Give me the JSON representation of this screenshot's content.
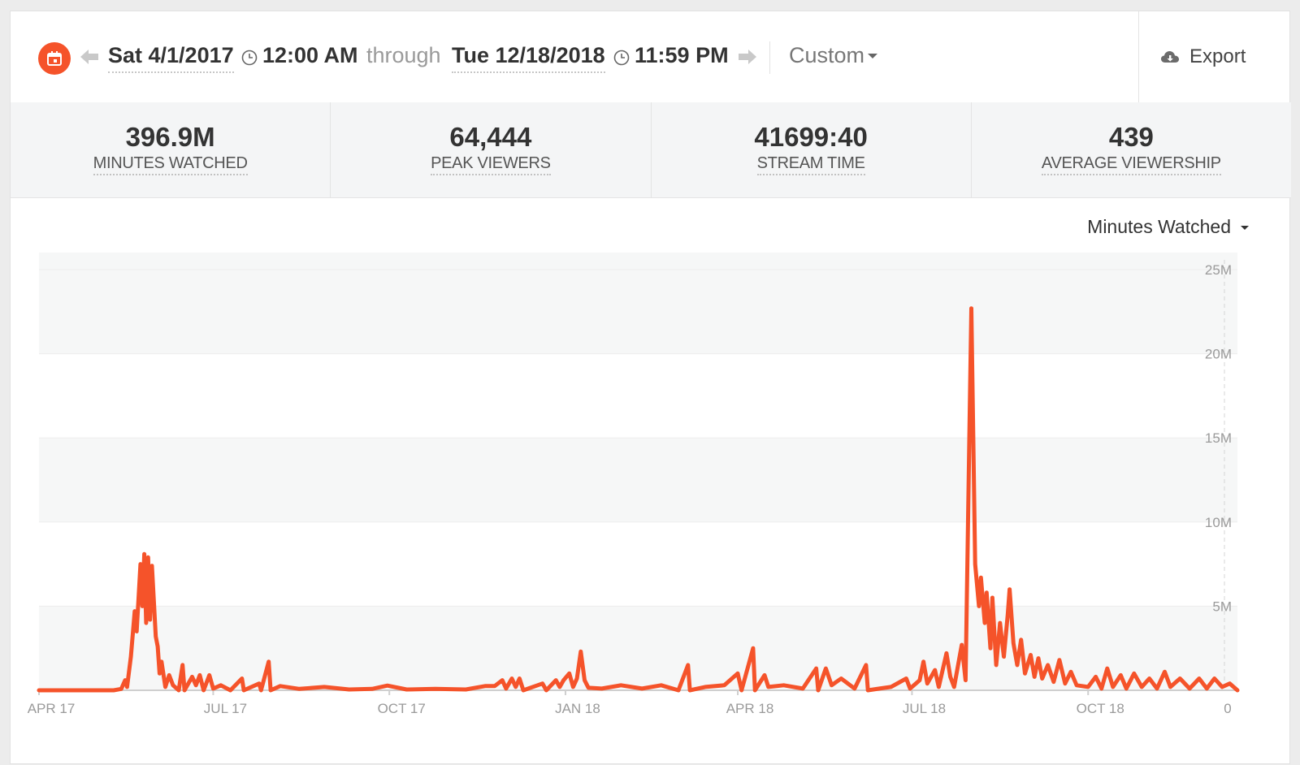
{
  "header": {
    "start_date": "Sat 4/1/2017",
    "start_time": "12:00 AM",
    "through": "through",
    "end_date": "Tue 12/18/2018",
    "end_time": "11:59 PM",
    "range_preset": "Custom",
    "export_label": "Export"
  },
  "stats": [
    {
      "value": "396.9M",
      "label": "MINUTES WATCHED"
    },
    {
      "value": "64,444",
      "label": "PEAK VIEWERS"
    },
    {
      "value": "41699:40",
      "label": "STREAM TIME"
    },
    {
      "value": "439",
      "label": "AVERAGE VIEWERSHIP"
    }
  ],
  "metric_selector": "Minutes Watched",
  "colors": {
    "accent": "#f5532a",
    "band": "#f6f7f7",
    "axis_text": "#9a9a9a"
  },
  "chart_data": {
    "type": "line",
    "title": "",
    "xlabel": "",
    "ylabel": "",
    "x_start": "2017-04-01",
    "x_end": "2018-12-18",
    "x_ticks": [
      {
        "date": "2017-04-01",
        "label": "APR 17"
      },
      {
        "date": "2017-07-01",
        "label": "JUL 17"
      },
      {
        "date": "2017-10-01",
        "label": "OCT 17"
      },
      {
        "date": "2018-01-01",
        "label": "JAN 18"
      },
      {
        "date": "2018-04-01",
        "label": "APR 18"
      },
      {
        "date": "2018-07-01",
        "label": "JUL 18"
      },
      {
        "date": "2018-10-01",
        "label": "OCT 18"
      }
    ],
    "x_end_label": "0",
    "ylim": [
      0,
      25000000
    ],
    "y_ticks": [
      {
        "value": 5000000,
        "label": "5M"
      },
      {
        "value": 10000000,
        "label": "10M"
      },
      {
        "value": 15000000,
        "label": "15M"
      },
      {
        "value": 20000000,
        "label": "20M"
      },
      {
        "value": 25000000,
        "label": "25M"
      }
    ],
    "grid": "alternating horizontal bands",
    "series": [
      {
        "color": "#f5532a",
        "points": [
          [
            "2017-04-01",
            0
          ],
          [
            "2017-04-20",
            0
          ],
          [
            "2017-05-10",
            0
          ],
          [
            "2017-05-14",
            80000
          ],
          [
            "2017-05-16",
            600000
          ],
          [
            "2017-05-17",
            200000
          ],
          [
            "2017-05-19",
            2000000
          ],
          [
            "2017-05-21",
            4700000
          ],
          [
            "2017-05-22",
            3500000
          ],
          [
            "2017-05-24",
            7500000
          ],
          [
            "2017-05-25",
            5000000
          ],
          [
            "2017-05-26",
            8100000
          ],
          [
            "2017-05-27",
            4000000
          ],
          [
            "2017-05-28",
            7900000
          ],
          [
            "2017-05-29",
            4200000
          ],
          [
            "2017-05-30",
            7400000
          ],
          [
            "2017-06-01",
            3200000
          ],
          [
            "2017-06-02",
            2600000
          ],
          [
            "2017-06-03",
            1000000
          ],
          [
            "2017-06-04",
            1700000
          ],
          [
            "2017-06-06",
            200000
          ],
          [
            "2017-06-08",
            900000
          ],
          [
            "2017-06-10",
            300000
          ],
          [
            "2017-06-13",
            0
          ],
          [
            "2017-06-15",
            1500000
          ],
          [
            "2017-06-16",
            0
          ],
          [
            "2017-06-20",
            800000
          ],
          [
            "2017-06-22",
            300000
          ],
          [
            "2017-06-24",
            900000
          ],
          [
            "2017-06-26",
            0
          ],
          [
            "2017-06-29",
            900000
          ],
          [
            "2017-07-01",
            100000
          ],
          [
            "2017-07-05",
            300000
          ],
          [
            "2017-07-10",
            0
          ],
          [
            "2017-07-16",
            700000
          ],
          [
            "2017-07-17",
            0
          ],
          [
            "2017-07-25",
            400000
          ],
          [
            "2017-07-26",
            0
          ],
          [
            "2017-07-30",
            1700000
          ],
          [
            "2017-07-31",
            0
          ],
          [
            "2017-08-05",
            250000
          ],
          [
            "2017-08-15",
            80000
          ],
          [
            "2017-08-28",
            200000
          ],
          [
            "2017-09-10",
            50000
          ],
          [
            "2017-09-22",
            80000
          ],
          [
            "2017-09-30",
            280000
          ],
          [
            "2017-10-10",
            50000
          ],
          [
            "2017-10-25",
            80000
          ],
          [
            "2017-11-10",
            50000
          ],
          [
            "2017-11-20",
            250000
          ],
          [
            "2017-11-25",
            250000
          ],
          [
            "2017-11-29",
            600000
          ],
          [
            "2017-12-01",
            100000
          ],
          [
            "2017-12-04",
            700000
          ],
          [
            "2017-12-06",
            200000
          ],
          [
            "2017-12-08",
            700000
          ],
          [
            "2017-12-10",
            0
          ],
          [
            "2017-12-20",
            400000
          ],
          [
            "2017-12-22",
            0
          ],
          [
            "2017-12-27",
            600000
          ],
          [
            "2017-12-29",
            200000
          ],
          [
            "2017-12-31",
            600000
          ],
          [
            "2018-01-03",
            1000000
          ],
          [
            "2018-01-05",
            200000
          ],
          [
            "2018-01-07",
            700000
          ],
          [
            "2018-01-09",
            2300000
          ],
          [
            "2018-01-11",
            600000
          ],
          [
            "2018-01-13",
            150000
          ],
          [
            "2018-01-20",
            100000
          ],
          [
            "2018-01-30",
            300000
          ],
          [
            "2018-02-10",
            100000
          ],
          [
            "2018-02-20",
            300000
          ],
          [
            "2018-03-01",
            0
          ],
          [
            "2018-03-06",
            1500000
          ],
          [
            "2018-03-07",
            0
          ],
          [
            "2018-03-15",
            200000
          ],
          [
            "2018-03-25",
            300000
          ],
          [
            "2018-04-01",
            1000000
          ],
          [
            "2018-04-03",
            0
          ],
          [
            "2018-04-09",
            2500000
          ],
          [
            "2018-04-10",
            0
          ],
          [
            "2018-04-15",
            900000
          ],
          [
            "2018-04-17",
            200000
          ],
          [
            "2018-04-25",
            300000
          ],
          [
            "2018-05-05",
            100000
          ],
          [
            "2018-05-12",
            1300000
          ],
          [
            "2018-05-13",
            0
          ],
          [
            "2018-05-17",
            1300000
          ],
          [
            "2018-05-20",
            300000
          ],
          [
            "2018-05-25",
            700000
          ],
          [
            "2018-06-01",
            100000
          ],
          [
            "2018-06-07",
            1500000
          ],
          [
            "2018-06-08",
            0
          ],
          [
            "2018-06-14",
            100000
          ],
          [
            "2018-06-20",
            200000
          ],
          [
            "2018-06-28",
            700000
          ],
          [
            "2018-06-30",
            100000
          ],
          [
            "2018-07-05",
            600000
          ],
          [
            "2018-07-07",
            1700000
          ],
          [
            "2018-07-09",
            400000
          ],
          [
            "2018-07-13",
            1200000
          ],
          [
            "2018-07-15",
            200000
          ],
          [
            "2018-07-19",
            2200000
          ],
          [
            "2018-07-21",
            800000
          ],
          [
            "2018-07-23",
            200000
          ],
          [
            "2018-07-27",
            2700000
          ],
          [
            "2018-07-29",
            600000
          ],
          [
            "2018-08-01",
            22700000
          ],
          [
            "2018-08-03",
            7500000
          ],
          [
            "2018-08-05",
            5000000
          ],
          [
            "2018-08-06",
            6700000
          ],
          [
            "2018-08-08",
            4000000
          ],
          [
            "2018-08-09",
            5800000
          ],
          [
            "2018-08-11",
            2500000
          ],
          [
            "2018-08-12",
            5500000
          ],
          [
            "2018-08-14",
            1500000
          ],
          [
            "2018-08-16",
            4000000
          ],
          [
            "2018-08-18",
            2000000
          ],
          [
            "2018-08-20",
            4500000
          ],
          [
            "2018-08-21",
            6000000
          ],
          [
            "2018-08-23",
            2800000
          ],
          [
            "2018-08-25",
            1500000
          ],
          [
            "2018-08-27",
            3000000
          ],
          [
            "2018-08-29",
            1000000
          ],
          [
            "2018-09-01",
            2100000
          ],
          [
            "2018-09-03",
            800000
          ],
          [
            "2018-09-05",
            1900000
          ],
          [
            "2018-09-07",
            700000
          ],
          [
            "2018-09-10",
            1500000
          ],
          [
            "2018-09-13",
            500000
          ],
          [
            "2018-09-16",
            1800000
          ],
          [
            "2018-09-19",
            400000
          ],
          [
            "2018-09-22",
            1100000
          ],
          [
            "2018-09-25",
            300000
          ],
          [
            "2018-10-01",
            200000
          ],
          [
            "2018-10-05",
            800000
          ],
          [
            "2018-10-08",
            100000
          ],
          [
            "2018-10-11",
            1300000
          ],
          [
            "2018-10-14",
            200000
          ],
          [
            "2018-10-18",
            900000
          ],
          [
            "2018-10-21",
            100000
          ],
          [
            "2018-10-25",
            1000000
          ],
          [
            "2018-10-29",
            200000
          ],
          [
            "2018-11-02",
            700000
          ],
          [
            "2018-11-06",
            100000
          ],
          [
            "2018-11-10",
            1100000
          ],
          [
            "2018-11-13",
            200000
          ],
          [
            "2018-11-18",
            700000
          ],
          [
            "2018-11-23",
            100000
          ],
          [
            "2018-11-28",
            700000
          ],
          [
            "2018-12-02",
            100000
          ],
          [
            "2018-12-06",
            700000
          ],
          [
            "2018-12-10",
            200000
          ],
          [
            "2018-12-14",
            400000
          ],
          [
            "2018-12-18",
            0
          ]
        ]
      }
    ]
  }
}
